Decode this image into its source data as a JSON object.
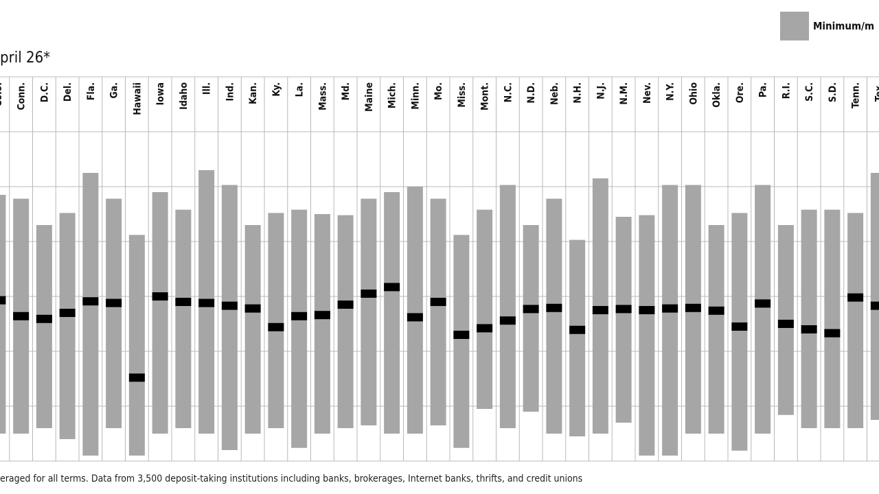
{
  "subtitle": "pril 26*",
  "legend": {
    "label": "Minimum/m",
    "swatch_color": "#a6a6a6"
  },
  "footnote": "eraged for all terms. Data from 3,500 deposit-taking institutions including banks, brokerages, Internet banks, thrifts, and credit unions",
  "chart_data": {
    "type": "bar",
    "subtype": "floating-range",
    "ylim": [
      0,
      6
    ],
    "grid": true,
    "legend_position": "top-right",
    "colors": {
      "range": "#a6a6a6",
      "average": "#000000",
      "grid": "#b8b8b8"
    },
    "categories": [
      "Colo.",
      "Conn.",
      "D.C.",
      "Del.",
      "Fla.",
      "Ga.",
      "Hawaii",
      "Iowa",
      "Idaho",
      "Ill.",
      "Ind.",
      "Kan.",
      "Ky.",
      "La.",
      "Mass.",
      "Md.",
      "Maine",
      "Mich.",
      "Minn.",
      "Mo.",
      "Miss.",
      "Mont.",
      "N.C.",
      "N.D.",
      "Neb.",
      "N.H.",
      "N.J.",
      "N.M.",
      "Nev.",
      "N.Y.",
      "Ohio",
      "Okla.",
      "Ore.",
      "Pa.",
      "R.I.",
      "S.C.",
      "S.D.",
      "Tenn.",
      "Tex."
    ],
    "min": [
      0.5,
      0.5,
      0.6,
      0.4,
      0.1,
      0.6,
      0.1,
      0.5,
      0.6,
      0.5,
      0.2,
      0.5,
      0.6,
      0.24,
      0.5,
      0.6,
      0.65,
      0.5,
      0.5,
      0.65,
      0.24,
      0.95,
      0.6,
      0.9,
      0.5,
      0.45,
      0.5,
      0.7,
      0.1,
      0.1,
      0.5,
      0.5,
      0.19,
      0.5,
      0.84,
      0.6,
      0.6,
      0.6,
      0.75
    ],
    "max": [
      4.85,
      4.78,
      4.3,
      4.52,
      5.25,
      4.78,
      4.12,
      4.9,
      4.58,
      5.3,
      5.03,
      4.3,
      4.52,
      4.58,
      4.5,
      4.48,
      4.78,
      4.9,
      5.0,
      4.78,
      4.12,
      4.58,
      5.03,
      4.3,
      4.78,
      4.03,
      5.15,
      4.45,
      4.48,
      5.03,
      5.03,
      4.3,
      4.52,
      5.03,
      4.3,
      4.58,
      4.58,
      4.52,
      5.25
    ],
    "average": [
      2.93,
      2.64,
      2.59,
      2.7,
      2.91,
      2.88,
      1.52,
      3.0,
      2.9,
      2.88,
      2.83,
      2.78,
      2.44,
      2.64,
      2.66,
      2.85,
      3.05,
      3.17,
      2.62,
      2.9,
      2.3,
      2.42,
      2.56,
      2.77,
      2.79,
      2.39,
      2.75,
      2.77,
      2.75,
      2.78,
      2.79,
      2.74,
      2.45,
      2.87,
      2.5,
      2.4,
      2.33,
      2.98,
      2.83
    ]
  }
}
